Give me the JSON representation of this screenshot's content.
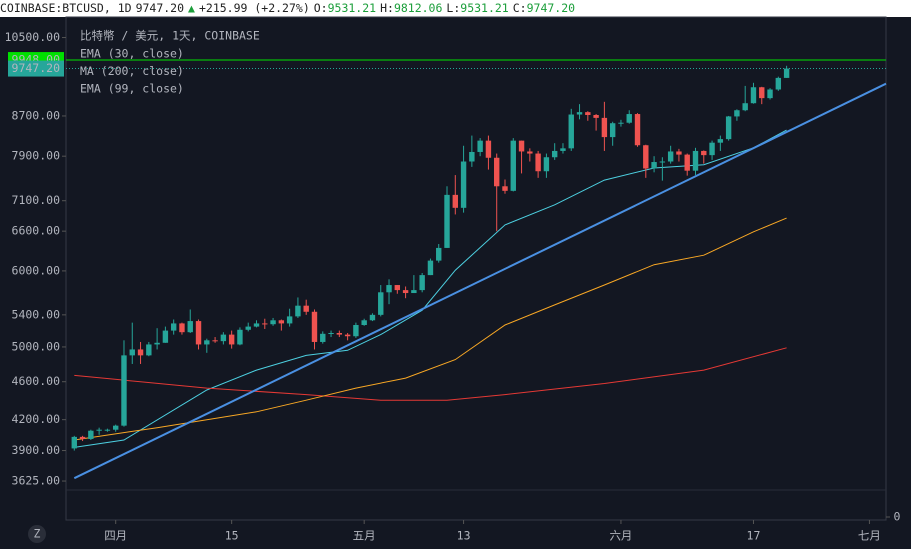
{
  "chart_data": {
    "type": "candlestick",
    "header": {
      "symbol": "COINBASE:BTCUSD, 1D",
      "last": "9747.20",
      "arrow": "▲",
      "change": "+215.99 (+2.27%)",
      "ohlc": [
        {
          "key": "O:",
          "value": "9531.21"
        },
        {
          "key": "H:",
          "value": "9812.06"
        },
        {
          "key": "L:",
          "value": "9531.21"
        },
        {
          "key": "C:",
          "value": "9747.20"
        }
      ]
    },
    "title": "比特幣 / 美元, 1天, COINBASE",
    "log_scale": true,
    "grid": false,
    "up_color": "#26a69a",
    "down_color": "#ef5350",
    "xlim": [
      -1,
      98
    ],
    "xticks": [
      {
        "value": 5,
        "label": "四月"
      },
      {
        "value": 19,
        "label": "15"
      },
      {
        "value": 35,
        "label": "五月"
      },
      {
        "value": 47,
        "label": "13"
      },
      {
        "value": 66,
        "label": "六月"
      },
      {
        "value": 82,
        "label": "17"
      },
      {
        "value": 96,
        "label": "七月"
      }
    ],
    "ylim": [
      3548,
      11030
    ],
    "yticks": [
      {
        "value": 3625,
        "label": "3625.00"
      },
      {
        "value": 3900,
        "label": "3900.00"
      },
      {
        "value": 4200,
        "label": "4200.00"
      },
      {
        "value": 4600,
        "label": "4600.00"
      },
      {
        "value": 5000,
        "label": "5000.00"
      },
      {
        "value": 5400,
        "label": "5400.00"
      },
      {
        "value": 6000,
        "label": "6000.00"
      },
      {
        "value": 6600,
        "label": "6600.00"
      },
      {
        "value": 7100,
        "label": "7100.00"
      },
      {
        "value": 7900,
        "label": "7900.00"
      },
      {
        "value": 8700,
        "label": "8700.00"
      },
      {
        "value": 10500,
        "label": "10500.00"
      }
    ],
    "volume_yticks": [
      0
    ],
    "ohlc": [
      [
        3920,
        4040,
        3900,
        4030
      ],
      [
        4030,
        4040,
        3990,
        4010
      ],
      [
        4010,
        4100,
        4000,
        4090
      ],
      [
        4090,
        4120,
        4050,
        4100
      ],
      [
        4100,
        4110,
        4080,
        4100
      ],
      [
        4100,
        4150,
        4080,
        4140
      ],
      [
        4140,
        5080,
        4130,
        4900
      ],
      [
        4900,
        5300,
        4800,
        4970
      ],
      [
        4970,
        5060,
        4800,
        4900
      ],
      [
        4900,
        5060,
        4890,
        5030
      ],
      [
        5030,
        5230,
        4970,
        5050
      ],
      [
        5050,
        5250,
        5050,
        5200
      ],
      [
        5200,
        5340,
        5150,
        5290
      ],
      [
        5290,
        5300,
        5150,
        5180
      ],
      [
        5180,
        5470,
        5170,
        5320
      ],
      [
        5320,
        5340,
        4970,
        5030
      ],
      [
        5030,
        5100,
        4930,
        5080
      ],
      [
        5080,
        5120,
        5050,
        5070
      ],
      [
        5070,
        5180,
        5030,
        5150
      ],
      [
        5150,
        5200,
        4980,
        5030
      ],
      [
        5030,
        5240,
        5020,
        5210
      ],
      [
        5210,
        5300,
        5190,
        5250
      ],
      [
        5250,
        5330,
        5240,
        5290
      ],
      [
        5290,
        5350,
        5220,
        5280
      ],
      [
        5280,
        5360,
        5260,
        5330
      ],
      [
        5330,
        5340,
        5200,
        5290
      ],
      [
        5290,
        5480,
        5250,
        5380
      ],
      [
        5380,
        5630,
        5360,
        5520
      ],
      [
        5520,
        5600,
        5400,
        5440
      ],
      [
        5440,
        5470,
        4970,
        5060
      ],
      [
        5060,
        5190,
        5040,
        5160
      ],
      [
        5160,
        5200,
        5120,
        5170
      ],
      [
        5170,
        5200,
        5120,
        5150
      ],
      [
        5150,
        5170,
        5080,
        5130
      ],
      [
        5130,
        5300,
        5110,
        5270
      ],
      [
        5270,
        5350,
        5260,
        5330
      ],
      [
        5330,
        5420,
        5320,
        5400
      ],
      [
        5400,
        5800,
        5380,
        5700
      ],
      [
        5700,
        5880,
        5540,
        5800
      ],
      [
        5800,
        5800,
        5680,
        5730
      ],
      [
        5730,
        5780,
        5620,
        5690
      ],
      [
        5690,
        5940,
        5690,
        5730
      ],
      [
        5730,
        5970,
        5700,
        5940
      ],
      [
        5940,
        6180,
        5940,
        6150
      ],
      [
        6150,
        6400,
        6120,
        6340
      ],
      [
        6340,
        7350,
        6340,
        7200
      ],
      [
        7200,
        7550,
        6870,
        6980
      ],
      [
        6980,
        8100,
        6900,
        7800
      ],
      [
        7800,
        8300,
        7700,
        7980
      ],
      [
        7980,
        8250,
        7900,
        8200
      ],
      [
        8200,
        8300,
        7650,
        7870
      ],
      [
        7870,
        7950,
        6600,
        7350
      ],
      [
        7350,
        7470,
        7220,
        7270
      ],
      [
        7270,
        8250,
        7260,
        8200
      ],
      [
        8200,
        8200,
        7580,
        7990
      ],
      [
        7990,
        8050,
        7800,
        7950
      ],
      [
        7950,
        8000,
        7500,
        7620
      ],
      [
        7620,
        7950,
        7500,
        7880
      ],
      [
        7880,
        8150,
        7830,
        8000
      ],
      [
        8000,
        8150,
        7950,
        8050
      ],
      [
        8050,
        8850,
        8000,
        8730
      ],
      [
        8730,
        8950,
        8630,
        8780
      ],
      [
        8780,
        8800,
        8600,
        8720
      ],
      [
        8720,
        8740,
        8400,
        8660
      ],
      [
        8660,
        9000,
        8000,
        8270
      ],
      [
        8270,
        8580,
        8100,
        8550
      ],
      [
        8550,
        8620,
        8480,
        8560
      ],
      [
        8560,
        8820,
        8540,
        8740
      ],
      [
        8740,
        8760,
        8080,
        8110
      ],
      [
        8110,
        8120,
        7500,
        7670
      ],
      [
        7670,
        7900,
        7600,
        7790
      ],
      [
        7790,
        7880,
        7450,
        7800
      ],
      [
        7800,
        8100,
        7760,
        7990
      ],
      [
        7990,
        8040,
        7800,
        7930
      ],
      [
        7930,
        7950,
        7540,
        7630
      ],
      [
        7630,
        8060,
        7550,
        8000
      ],
      [
        8000,
        8010,
        7760,
        7920
      ],
      [
        7920,
        8200,
        7830,
        8160
      ],
      [
        8160,
        8300,
        8000,
        8230
      ],
      [
        8230,
        8700,
        8200,
        8690
      ],
      [
        8690,
        8840,
        8600,
        8820
      ],
      [
        8820,
        9350,
        8800,
        8970
      ],
      [
        8970,
        9420,
        8960,
        9320
      ],
      [
        9320,
        9330,
        8950,
        9080
      ],
      [
        9080,
        9300,
        9050,
        9270
      ],
      [
        9270,
        9560,
        9240,
        9531.21
      ],
      [
        9531.21,
        9812.06,
        9531.21,
        9747.2
      ]
    ],
    "series": [
      {
        "name": "EMA (30, close)",
        "color": "#4dd0e1",
        "x": [
          0,
          6,
          16,
          22,
          28,
          33,
          37,
          42,
          46,
          52,
          58,
          64,
          70,
          76,
          82,
          86
        ],
        "values": [
          3930,
          4000,
          4510,
          4730,
          4900,
          4960,
          5150,
          5460,
          6010,
          6700,
          7030,
          7460,
          7680,
          7740,
          8060,
          8410
        ]
      },
      {
        "name": "MA (200, close)",
        "color": "#e53935",
        "x": [
          0,
          16,
          28,
          37,
          45,
          52,
          64,
          76,
          86
        ],
        "values": [
          4670,
          4530,
          4460,
          4400,
          4400,
          4460,
          4580,
          4730,
          4990
        ]
      },
      {
        "name": "EMA (99, close)",
        "color": "#f9a825",
        "x": [
          0,
          10,
          22,
          28,
          34,
          40,
          46,
          52,
          58,
          64,
          70,
          76,
          82,
          86
        ],
        "values": [
          4000,
          4120,
          4280,
          4400,
          4530,
          4640,
          4850,
          5270,
          5530,
          5800,
          6090,
          6230,
          6590,
          6810
        ]
      }
    ],
    "trendline": {
      "color": "#4a90e2",
      "x": [
        0,
        98
      ],
      "values": [
        3650,
        9400
      ]
    },
    "price_lines": [
      {
        "value": 9948,
        "label": "9948.00",
        "color": "#00e000"
      },
      {
        "value": 9747.2,
        "label": "9747.20",
        "color": "#26a69a"
      }
    ]
  }
}
